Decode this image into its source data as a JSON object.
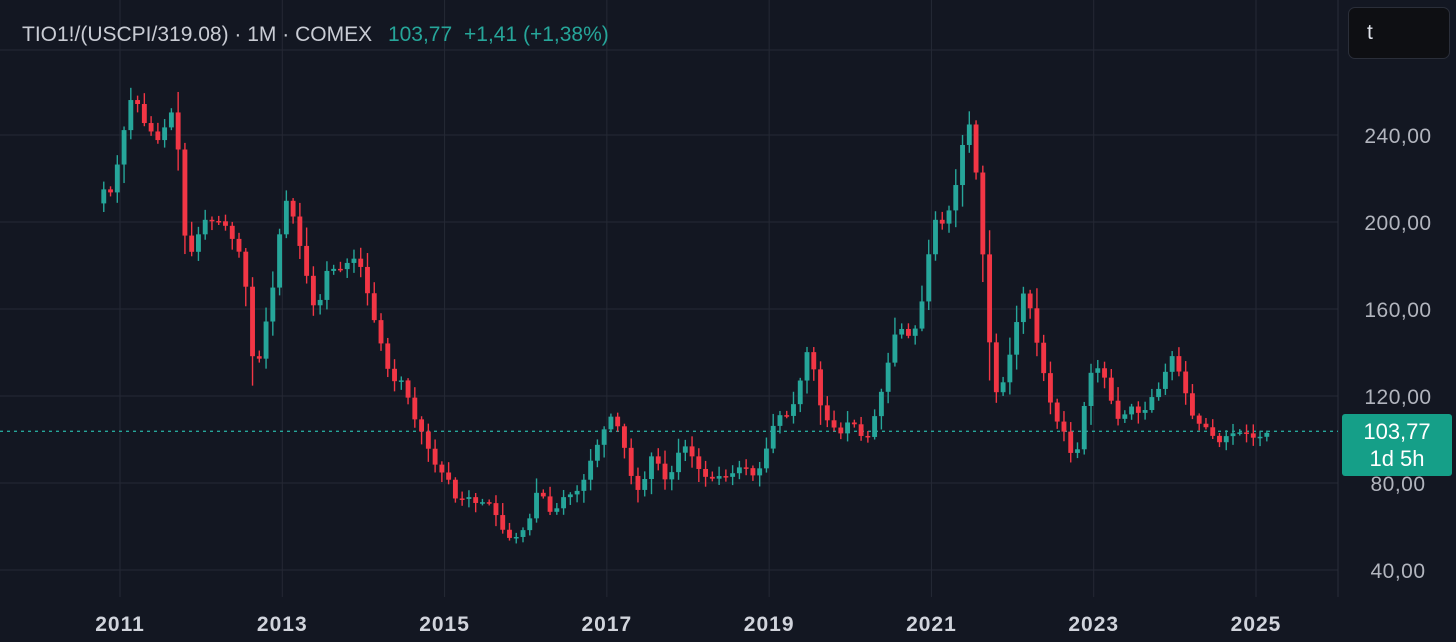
{
  "legend": {
    "symbol": "TIO1!/(USCPI/319.08) · 1M · COMEX",
    "last": "103,77",
    "change": "+1,41 (+1,38%)"
  },
  "search": {
    "value": "t"
  },
  "price_tag": {
    "price": "103,77",
    "countdown": "1d 5h"
  },
  "colors": {
    "background": "#131722",
    "up": "#26a69a",
    "down": "#f23645",
    "grid": "#252935",
    "price_line": "#26a69a"
  },
  "chart_data": {
    "type": "candlestick",
    "title": "TIO1!/(USCPI/319.08) · 1M · COMEX",
    "interval": "1M",
    "ylim": [
      35,
      282
    ],
    "y_ticks": [
      "240,00",
      "200,00",
      "160,00",
      "120,00",
      "80,00",
      "40,00"
    ],
    "y_tick_values": [
      240,
      200,
      160,
      120,
      80,
      40
    ],
    "x_ticks": [
      "2011",
      "2013",
      "2015",
      "2017",
      "2019",
      "2021",
      "2023",
      "2025"
    ],
    "x_tick_values": [
      2011,
      2013,
      2015,
      2017,
      2019,
      2021,
      2023,
      2025
    ],
    "xlim": [
      2009.75,
      2026.0
    ],
    "last_price": 103.77,
    "grid": true,
    "anchors": [
      [
        2010.8,
        215
      ],
      [
        2010.92,
        213
      ],
      [
        2011.0,
        236
      ],
      [
        2011.08,
        246
      ],
      [
        2011.17,
        263
      ],
      [
        2011.25,
        248
      ],
      [
        2011.33,
        244
      ],
      [
        2011.42,
        240
      ],
      [
        2011.5,
        236
      ],
      [
        2011.58,
        248
      ],
      [
        2011.67,
        252
      ],
      [
        2011.75,
        220
      ],
      [
        2011.83,
        178
      ],
      [
        2011.92,
        192
      ],
      [
        2012.0,
        196
      ],
      [
        2012.08,
        204
      ],
      [
        2012.17,
        198
      ],
      [
        2012.25,
        202
      ],
      [
        2012.33,
        196
      ],
      [
        2012.5,
        184
      ],
      [
        2012.58,
        162
      ],
      [
        2012.67,
        122
      ],
      [
        2012.75,
        148
      ],
      [
        2012.83,
        158
      ],
      [
        2012.92,
        178
      ],
      [
        2013.0,
        206
      ],
      [
        2013.08,
        212
      ],
      [
        2013.17,
        196
      ],
      [
        2013.25,
        184
      ],
      [
        2013.33,
        170
      ],
      [
        2013.42,
        156
      ],
      [
        2013.5,
        170
      ],
      [
        2013.58,
        182
      ],
      [
        2013.67,
        176
      ],
      [
        2013.75,
        180
      ],
      [
        2013.92,
        184
      ],
      [
        2014.0,
        176
      ],
      [
        2014.08,
        162
      ],
      [
        2014.17,
        150
      ],
      [
        2014.25,
        140
      ],
      [
        2014.33,
        128
      ],
      [
        2014.42,
        126
      ],
      [
        2014.5,
        128
      ],
      [
        2014.58,
        114
      ],
      [
        2014.67,
        106
      ],
      [
        2014.75,
        102
      ],
      [
        2014.83,
        92
      ],
      [
        2014.92,
        86
      ],
      [
        2015.0,
        84
      ],
      [
        2015.08,
        80
      ],
      [
        2015.17,
        68
      ],
      [
        2015.25,
        76
      ],
      [
        2015.33,
        72
      ],
      [
        2015.42,
        70
      ],
      [
        2015.5,
        72
      ],
      [
        2015.58,
        70
      ],
      [
        2015.67,
        62
      ],
      [
        2015.75,
        56
      ],
      [
        2015.83,
        54
      ],
      [
        2015.92,
        56
      ],
      [
        2016.0,
        60
      ],
      [
        2016.08,
        66
      ],
      [
        2016.17,
        82
      ],
      [
        2016.25,
        68
      ],
      [
        2016.33,
        66
      ],
      [
        2016.42,
        70
      ],
      [
        2016.5,
        76
      ],
      [
        2016.58,
        74
      ],
      [
        2016.67,
        78
      ],
      [
        2016.75,
        84
      ],
      [
        2016.83,
        94
      ],
      [
        2016.92,
        100
      ],
      [
        2017.0,
        108
      ],
      [
        2017.08,
        112
      ],
      [
        2017.17,
        102
      ],
      [
        2017.25,
        92
      ],
      [
        2017.33,
        78
      ],
      [
        2017.42,
        76
      ],
      [
        2017.5,
        86
      ],
      [
        2017.58,
        96
      ],
      [
        2017.67,
        84
      ],
      [
        2017.75,
        80
      ],
      [
        2017.83,
        88
      ],
      [
        2017.92,
        98
      ],
      [
        2018.0,
        96
      ],
      [
        2018.08,
        90
      ],
      [
        2018.17,
        84
      ],
      [
        2018.25,
        82
      ],
      [
        2018.33,
        82
      ],
      [
        2018.42,
        84
      ],
      [
        2018.5,
        82
      ],
      [
        2018.58,
        86
      ],
      [
        2018.67,
        88
      ],
      [
        2018.75,
        86
      ],
      [
        2018.83,
        82
      ],
      [
        2018.92,
        90
      ],
      [
        2019.0,
        100
      ],
      [
        2019.08,
        110
      ],
      [
        2019.17,
        112
      ],
      [
        2019.25,
        110
      ],
      [
        2019.33,
        120
      ],
      [
        2019.42,
        132
      ],
      [
        2019.5,
        146
      ],
      [
        2019.58,
        124
      ],
      [
        2019.67,
        110
      ],
      [
        2019.75,
        108
      ],
      [
        2019.83,
        104
      ],
      [
        2019.92,
        102
      ],
      [
        2020.0,
        112
      ],
      [
        2020.08,
        104
      ],
      [
        2020.17,
        100
      ],
      [
        2020.25,
        102
      ],
      [
        2020.33,
        116
      ],
      [
        2020.42,
        126
      ],
      [
        2020.5,
        142
      ],
      [
        2020.58,
        152
      ],
      [
        2020.67,
        150
      ],
      [
        2020.75,
        146
      ],
      [
        2020.83,
        154
      ],
      [
        2020.92,
        170
      ],
      [
        2021.0,
        196
      ],
      [
        2021.08,
        204
      ],
      [
        2021.17,
        196
      ],
      [
        2021.25,
        212
      ],
      [
        2021.33,
        220
      ],
      [
        2021.42,
        246
      ],
      [
        2021.5,
        244
      ],
      [
        2021.58,
        210
      ],
      [
        2021.67,
        168
      ],
      [
        2021.75,
        128
      ],
      [
        2021.83,
        118
      ],
      [
        2021.92,
        132
      ],
      [
        2022.0,
        144
      ],
      [
        2022.08,
        160
      ],
      [
        2022.17,
        172
      ],
      [
        2022.25,
        152
      ],
      [
        2022.33,
        140
      ],
      [
        2022.42,
        124
      ],
      [
        2022.5,
        112
      ],
      [
        2022.58,
        106
      ],
      [
        2022.67,
        102
      ],
      [
        2022.75,
        88
      ],
      [
        2022.83,
        100
      ],
      [
        2022.92,
        126
      ],
      [
        2023.0,
        134
      ],
      [
        2023.08,
        132
      ],
      [
        2023.17,
        126
      ],
      [
        2023.25,
        112
      ],
      [
        2023.33,
        108
      ],
      [
        2023.42,
        114
      ],
      [
        2023.5,
        116
      ],
      [
        2023.58,
        110
      ],
      [
        2023.67,
        116
      ],
      [
        2023.75,
        122
      ],
      [
        2023.83,
        124
      ],
      [
        2023.92,
        136
      ],
      [
        2024.0,
        140
      ],
      [
        2024.08,
        126
      ],
      [
        2024.17,
        118
      ],
      [
        2024.25,
        106
      ],
      [
        2024.33,
        108
      ],
      [
        2024.42,
        104
      ],
      [
        2024.5,
        100
      ],
      [
        2024.58,
        98
      ],
      [
        2024.67,
        104
      ],
      [
        2024.75,
        102
      ],
      [
        2024.83,
        104
      ],
      [
        2024.92,
        102
      ],
      [
        2025.0,
        100
      ],
      [
        2025.08,
        102
      ],
      [
        2025.17,
        103.77
      ]
    ]
  }
}
